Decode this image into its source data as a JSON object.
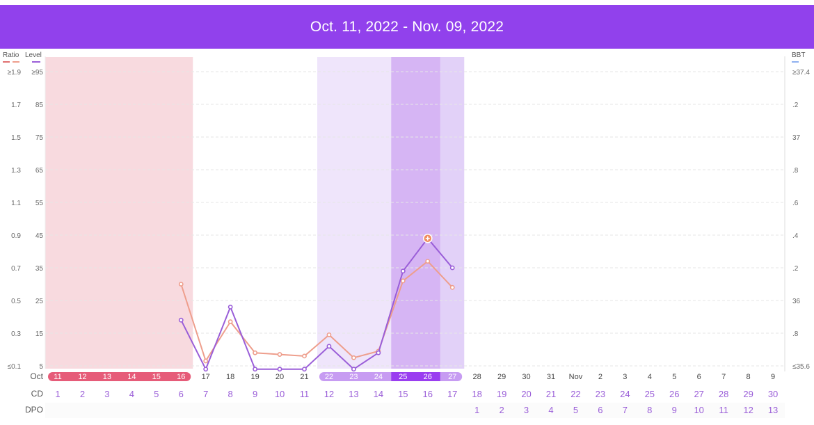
{
  "header": {
    "title": "Oct. 11, 2022 - Nov. 09, 2022"
  },
  "colors": {
    "header_bg": "#9141ec",
    "ratio_line": "#ee9e8c",
    "level_line": "#9a5ed8",
    "period_band": "#f8dadf",
    "fertile_band": "#efe5fb",
    "fertile_inner_band": "#e2d1f8",
    "peak_band": "#d6b5f4",
    "period_pill": "#e65c79",
    "fertile_pill": "#c79cf2",
    "peak_pill": "#9a3ef0",
    "cd_text": "#9a5ed8",
    "dpo_text": "#9a5ed8",
    "bbt_legend": "#8fb0f0"
  },
  "legend": {
    "ratio": "Ratio",
    "level": "Level",
    "bbt": "BBT"
  },
  "rows": {
    "month_label": "Oct",
    "cd_label": "CD",
    "dpo_label": "DPO"
  },
  "chart_data": {
    "type": "line",
    "title": "",
    "x": [
      "11",
      "12",
      "13",
      "14",
      "15",
      "16",
      "17",
      "18",
      "19",
      "20",
      "21",
      "22",
      "23",
      "24",
      "25",
      "26",
      "27",
      "28",
      "29",
      "30",
      "31",
      "Nov",
      "2",
      "3",
      "4",
      "5",
      "6",
      "7",
      "8",
      "9"
    ],
    "cd": [
      "1",
      "2",
      "3",
      "4",
      "5",
      "6",
      "7",
      "8",
      "9",
      "10",
      "11",
      "12",
      "13",
      "14",
      "15",
      "16",
      "17",
      "18",
      "19",
      "20",
      "21",
      "22",
      "23",
      "24",
      "25",
      "26",
      "27",
      "28",
      "29",
      "30"
    ],
    "dpo": [
      "",
      "",
      "",
      "",
      "",
      "",
      "",
      "",
      "",
      "",
      "",
      "",
      "",
      "",
      "",
      "",
      "",
      "1",
      "2",
      "3",
      "4",
      "5",
      "6",
      "7",
      "8",
      "9",
      "10",
      "11",
      "12",
      "13"
    ],
    "y_left_ratio_ticks": [
      "≤0.1",
      "0.3",
      "0.5",
      "0.7",
      "0.9",
      "1.1",
      "1.3",
      "1.5",
      "1.7",
      "≥1.9"
    ],
    "y_left_level_ticks": [
      "5",
      "15",
      "25",
      "35",
      "45",
      "55",
      "65",
      "75",
      "85",
      "≥95"
    ],
    "y_right_bbt_ticks": [
      "≤35.6",
      ".8",
      "36",
      ".2",
      ".4",
      ".6",
      ".8",
      "37",
      ".2",
      "≥37.4"
    ],
    "ratio_ylim": [
      0.1,
      1.9
    ],
    "level_ylim": [
      5,
      95
    ],
    "series": [
      {
        "name": "Ratio",
        "values": [
          null,
          null,
          null,
          null,
          null,
          0.6,
          0.13,
          0.37,
          0.18,
          0.17,
          0.16,
          0.29,
          0.15,
          0.19,
          0.62,
          0.74,
          0.58,
          null,
          null,
          null,
          null,
          null,
          null,
          null,
          null,
          null,
          null,
          null,
          null,
          null
        ]
      },
      {
        "name": "Level",
        "values": [
          null,
          null,
          null,
          null,
          null,
          19,
          4,
          23,
          4,
          4,
          4,
          11,
          4,
          9,
          34,
          44,
          35,
          null,
          null,
          null,
          null,
          null,
          null,
          null,
          null,
          null,
          null,
          null,
          null,
          null
        ]
      }
    ],
    "peak_day": "26",
    "period_days": [
      "11",
      "12",
      "13",
      "14",
      "15",
      "16"
    ],
    "fertile_days": [
      "22",
      "23",
      "24",
      "25",
      "26",
      "27"
    ],
    "peak_days": [
      "25",
      "26"
    ],
    "grid": true
  }
}
